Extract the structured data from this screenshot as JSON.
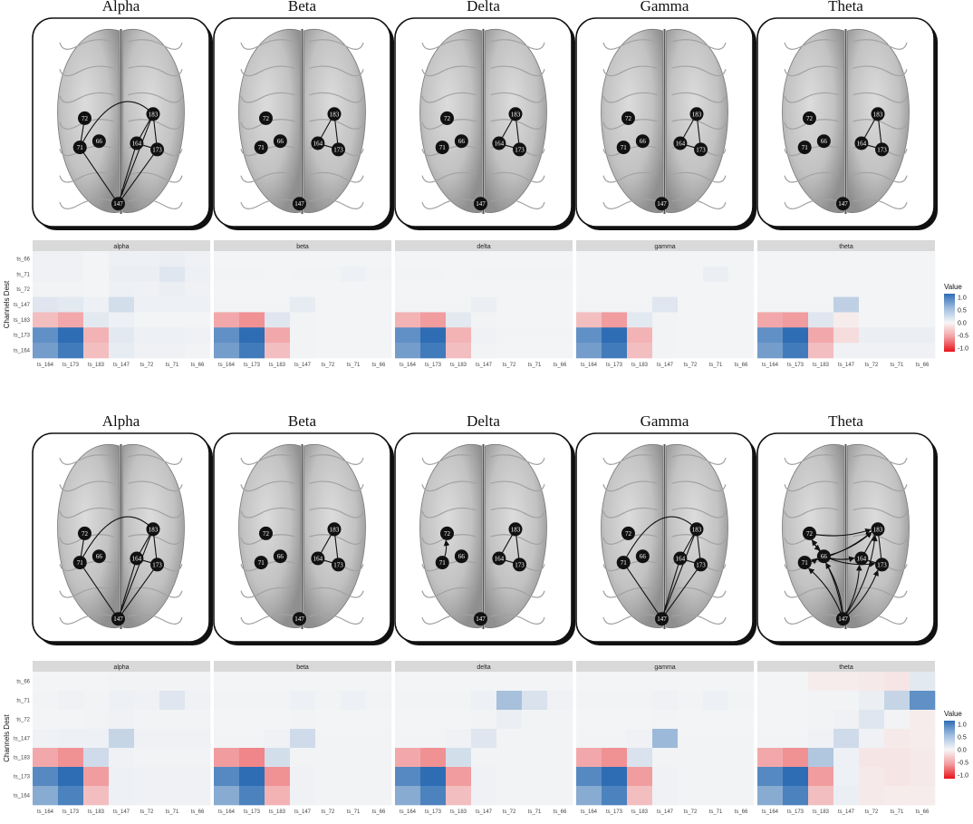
{
  "bands": [
    "Alpha",
    "Beta",
    "Delta",
    "Gamma",
    "Theta"
  ],
  "panel_labels": [
    "alpha",
    "beta",
    "delta",
    "gamma",
    "theta"
  ],
  "y_axis_label": "Channels Dest",
  "channels_dest": [
    "ts_66",
    "ts_71",
    "ts_72",
    "ts_147",
    "ts_183",
    "ts_173",
    "ts_164"
  ],
  "channels_src": [
    "ts_164",
    "ts_173",
    "ts_183",
    "ts_147",
    "ts_72",
    "ts_71",
    "ts_66"
  ],
  "legend": {
    "title": "Value",
    "ticks": [
      "1.0",
      "0.5",
      "0.0",
      "-0.5",
      "-1.0"
    ]
  },
  "colors": {
    "positive": "#2e6db4",
    "negative": "#e8141b",
    "node": "#111111",
    "strip": "#d9d9d9"
  },
  "node_ids": [
    "72",
    "71",
    "66",
    "183",
    "164",
    "173",
    "147"
  ],
  "rows": [
    {
      "brains": [
        {
          "edges": [
            [
              147,
              71
            ],
            [
              71,
              72
            ],
            [
              71,
              183
            ],
            [
              147,
              164
            ],
            [
              147,
              173
            ],
            [
              147,
              183
            ],
            [
              164,
              183
            ],
            [
              183,
              173
            ],
            [
              164,
              173
            ]
          ],
          "directed": []
        },
        {
          "edges": [
            [
              164,
              183
            ],
            [
              183,
              173
            ],
            [
              164,
              173
            ]
          ],
          "directed": []
        },
        {
          "edges": [
            [
              164,
              183
            ],
            [
              183,
              173
            ],
            [
              164,
              173
            ]
          ],
          "directed": []
        },
        {
          "edges": [
            [
              164,
              183
            ],
            [
              183,
              173
            ],
            [
              164,
              173
            ]
          ],
          "directed": []
        },
        {
          "edges": [
            [
              164,
              183
            ],
            [
              183,
              173
            ],
            [
              164,
              173
            ]
          ],
          "directed": []
        }
      ],
      "heatmaps": [
        [
          [
            0.04,
            0.04,
            0.02,
            0.05,
            0.05,
            0.06,
            0.04
          ],
          [
            0.04,
            0.04,
            0.02,
            0.06,
            0.06,
            0.12,
            0.05
          ],
          [
            0.03,
            0.03,
            0.02,
            0.05,
            0.04,
            0.06,
            0.04
          ],
          [
            0.12,
            0.1,
            0.05,
            0.18,
            0.05,
            0.05,
            0.05
          ],
          [
            -0.25,
            -0.35,
            0.1,
            0.05,
            0.02,
            0.02,
            0.02
          ],
          [
            0.75,
            1.0,
            -0.3,
            0.1,
            0.05,
            0.05,
            0.04
          ],
          [
            0.65,
            0.9,
            -0.25,
            0.08,
            0.04,
            0.04,
            0.03
          ]
        ],
        [
          [
            0.02,
            0.02,
            0.02,
            0.02,
            0.02,
            0.02,
            0.02
          ],
          [
            0.03,
            0.03,
            0.02,
            0.03,
            0.03,
            0.05,
            0.03
          ],
          [
            0.02,
            0.02,
            0.02,
            0.02,
            0.02,
            0.02,
            0.02
          ],
          [
            0.03,
            0.03,
            0.03,
            0.08,
            0.02,
            0.02,
            0.02
          ],
          [
            -0.35,
            -0.45,
            0.12,
            0.03,
            0.02,
            0.02,
            0.02
          ],
          [
            0.75,
            1.0,
            -0.35,
            0.03,
            0.02,
            0.02,
            0.02
          ],
          [
            0.65,
            0.9,
            -0.25,
            0.03,
            0.02,
            0.02,
            0.02
          ]
        ],
        [
          [
            0.02,
            0.02,
            0.02,
            0.02,
            0.02,
            0.02,
            0.02
          ],
          [
            0.03,
            0.03,
            0.02,
            0.03,
            0.03,
            0.03,
            0.03
          ],
          [
            0.02,
            0.02,
            0.02,
            0.02,
            0.02,
            0.02,
            0.02
          ],
          [
            0.03,
            0.03,
            0.03,
            0.06,
            0.02,
            0.02,
            0.02
          ],
          [
            -0.3,
            -0.4,
            0.1,
            0.03,
            0.02,
            0.02,
            0.02
          ],
          [
            0.75,
            1.0,
            -0.3,
            0.04,
            0.03,
            0.03,
            0.03
          ],
          [
            0.65,
            0.9,
            -0.25,
            0.03,
            0.02,
            0.02,
            0.02
          ]
        ],
        [
          [
            0.02,
            0.02,
            0.02,
            0.02,
            0.02,
            0.02,
            0.02
          ],
          [
            0.02,
            0.02,
            0.02,
            0.02,
            0.02,
            0.06,
            0.02
          ],
          [
            0.02,
            0.02,
            0.02,
            0.02,
            0.02,
            0.02,
            0.02
          ],
          [
            0.03,
            0.03,
            0.03,
            0.12,
            0.02,
            0.02,
            0.02
          ],
          [
            -0.25,
            -0.4,
            0.1,
            0.03,
            0.02,
            0.02,
            0.02
          ],
          [
            0.75,
            1.0,
            -0.3,
            0.03,
            0.02,
            0.02,
            0.02
          ],
          [
            0.65,
            0.9,
            -0.25,
            0.03,
            0.02,
            0.02,
            0.02
          ]
        ],
        [
          [
            0.02,
            0.02,
            0.02,
            0.02,
            0.02,
            0.02,
            0.02
          ],
          [
            0.02,
            0.02,
            0.02,
            0.02,
            0.02,
            0.02,
            0.02
          ],
          [
            0.02,
            0.02,
            0.02,
            0.02,
            0.02,
            0.02,
            0.02
          ],
          [
            0.03,
            0.03,
            0.03,
            0.28,
            0.02,
            0.02,
            0.02
          ],
          [
            -0.35,
            -0.4,
            0.12,
            -0.05,
            0.02,
            0.02,
            0.02
          ],
          [
            0.75,
            1.0,
            -0.35,
            -0.12,
            0.06,
            0.06,
            0.06
          ],
          [
            0.65,
            0.9,
            -0.25,
            0.04,
            0.04,
            0.04,
            0.04
          ]
        ]
      ]
    },
    {
      "brains": [
        {
          "edges": [
            [
              147,
              71
            ],
            [
              71,
              72
            ],
            [
              71,
              183
            ],
            [
              147,
              164
            ],
            [
              147,
              173
            ],
            [
              147,
              183
            ],
            [
              164,
              183
            ],
            [
              183,
              173
            ],
            [
              164,
              173
            ]
          ],
          "directed": []
        },
        {
          "edges": [
            [
              164,
              183
            ],
            [
              183,
              173
            ],
            [
              164,
              173
            ]
          ],
          "directed": []
        },
        {
          "edges": [
            [
              164,
              183
            ],
            [
              183,
              173
            ],
            [
              164,
              173
            ]
          ],
          "directed": [
            [
              71,
              72
            ]
          ]
        },
        {
          "edges": [
            [
              147,
              71
            ],
            [
              71,
              183
            ],
            [
              147,
              164
            ],
            [
              147,
              173
            ],
            [
              147,
              183
            ],
            [
              164,
              183
            ],
            [
              183,
              173
            ],
            [
              164,
              173
            ]
          ],
          "directed": []
        },
        {
          "edges": [
            [
              164,
              183
            ],
            [
              183,
              173
            ],
            [
              164,
              173
            ]
          ],
          "directed": [
            [
              72,
              66
            ],
            [
              71,
              66
            ],
            [
              147,
              66
            ],
            [
              147,
              71
            ],
            [
              147,
              72
            ],
            [
              147,
              183
            ],
            [
              147,
              164
            ],
            [
              147,
              173
            ],
            [
              72,
              183
            ],
            [
              66,
              183
            ],
            [
              71,
              183
            ],
            [
              66,
              173
            ],
            [
              66,
              164
            ]
          ]
        }
      ],
      "heatmaps": [
        [
          [
            0.02,
            0.02,
            0.02,
            0.03,
            0.03,
            0.03,
            0.03
          ],
          [
            0.03,
            0.04,
            0.03,
            0.05,
            0.04,
            0.12,
            0.04
          ],
          [
            0.02,
            0.02,
            0.03,
            0.04,
            0.03,
            0.03,
            0.03
          ],
          [
            0.04,
            0.05,
            0.05,
            0.25,
            0.04,
            0.04,
            0.04
          ],
          [
            -0.35,
            -0.45,
            0.2,
            0.04,
            0.03,
            0.03,
            0.03
          ],
          [
            0.8,
            1.0,
            -0.4,
            0.05,
            0.04,
            0.04,
            0.04
          ],
          [
            0.55,
            0.85,
            -0.25,
            0.05,
            0.04,
            0.04,
            0.04
          ]
        ],
        [
          [
            0.02,
            0.02,
            0.02,
            0.02,
            0.02,
            0.02,
            0.02
          ],
          [
            0.03,
            0.03,
            0.03,
            0.05,
            0.03,
            0.05,
            0.03
          ],
          [
            0.02,
            0.02,
            0.02,
            0.03,
            0.02,
            0.02,
            0.02
          ],
          [
            0.03,
            0.03,
            0.04,
            0.2,
            0.03,
            0.03,
            0.03
          ],
          [
            -0.4,
            -0.5,
            0.18,
            0.03,
            0.03,
            0.03,
            0.03
          ],
          [
            0.8,
            1.0,
            -0.45,
            0.04,
            0.03,
            0.03,
            0.03
          ],
          [
            0.55,
            0.85,
            -0.3,
            0.04,
            0.03,
            0.03,
            0.03
          ]
        ],
        [
          [
            0.02,
            0.02,
            0.02,
            0.02,
            0.02,
            0.02,
            0.02
          ],
          [
            0.03,
            0.03,
            0.03,
            0.05,
            0.4,
            0.15,
            0.04
          ],
          [
            0.02,
            0.02,
            0.02,
            0.03,
            0.06,
            0.03,
            0.03
          ],
          [
            0.03,
            0.03,
            0.04,
            0.12,
            0.03,
            0.03,
            0.03
          ],
          [
            -0.35,
            -0.45,
            0.18,
            0.03,
            0.03,
            0.03,
            0.03
          ],
          [
            0.8,
            1.0,
            -0.4,
            0.04,
            0.03,
            0.03,
            0.03
          ],
          [
            0.55,
            0.85,
            -0.25,
            0.04,
            0.03,
            0.03,
            0.03
          ]
        ],
        [
          [
            0.02,
            0.02,
            0.02,
            0.02,
            0.02,
            0.02,
            0.02
          ],
          [
            0.03,
            0.03,
            0.03,
            0.04,
            0.03,
            0.05,
            0.03
          ],
          [
            0.02,
            0.02,
            0.02,
            0.03,
            0.02,
            0.02,
            0.02
          ],
          [
            0.03,
            0.03,
            0.04,
            0.45,
            0.03,
            0.03,
            0.03
          ],
          [
            -0.35,
            -0.45,
            0.15,
            0.03,
            0.03,
            0.03,
            0.03
          ],
          [
            0.8,
            1.0,
            -0.4,
            0.04,
            0.03,
            0.03,
            0.03
          ],
          [
            0.55,
            0.85,
            -0.25,
            0.04,
            0.03,
            0.03,
            0.03
          ]
        ],
        [
          [
            0.02,
            0.02,
            -0.05,
            -0.05,
            -0.06,
            -0.08,
            0.1
          ],
          [
            0.02,
            0.02,
            0.03,
            0.03,
            0.06,
            0.25,
            0.75
          ],
          [
            0.02,
            0.02,
            0.03,
            0.04,
            0.12,
            0.03,
            -0.05
          ],
          [
            0.03,
            0.03,
            0.04,
            0.2,
            0.04,
            -0.06,
            -0.05
          ],
          [
            -0.35,
            -0.45,
            0.35,
            0.05,
            -0.08,
            -0.08,
            -0.06
          ],
          [
            0.8,
            1.0,
            -0.4,
            0.05,
            -0.06,
            -0.08,
            -0.06
          ],
          [
            0.55,
            0.85,
            -0.25,
            0.06,
            -0.06,
            -0.05,
            -0.05
          ]
        ]
      ]
    }
  ]
}
